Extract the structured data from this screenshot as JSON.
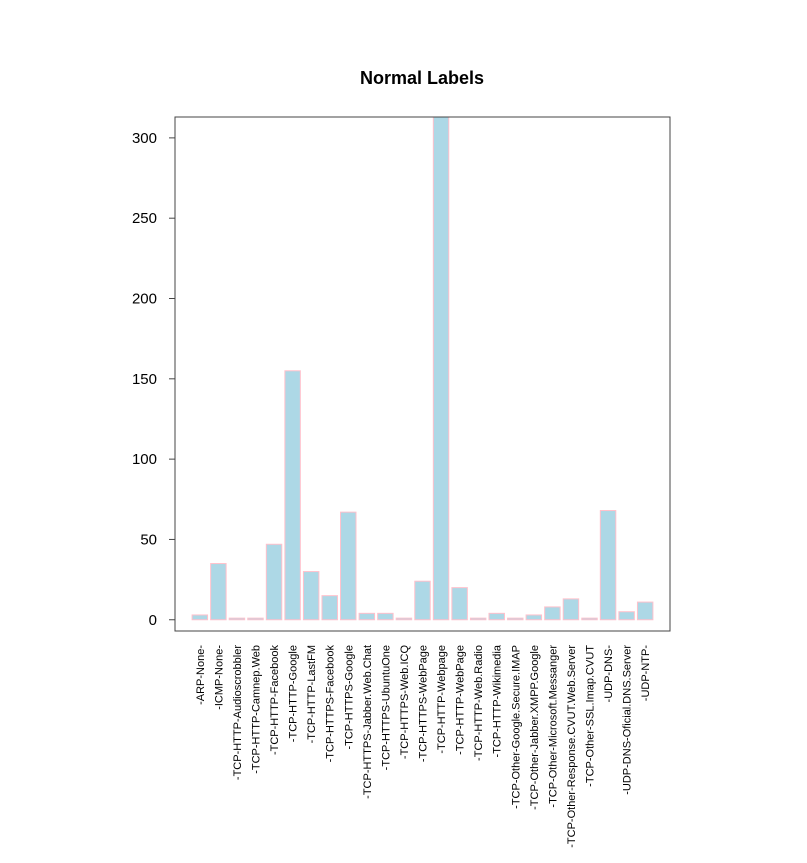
{
  "chart_data": {
    "type": "bar",
    "title": "Normal Labels",
    "xlabel": "",
    "ylabel": "",
    "categories": [
      "-ARP-None-",
      "-ICMP-None-",
      "-TCP-HTTP-Audioscrobbler",
      "-TCP-HTTP-Camnep.Web",
      "-TCP-HTTP-Facebook",
      "-TCP-HTTP-Google",
      "-TCP-HTTP-LastFM",
      "-TCP-HTTPS-Facebook",
      "-TCP-HTTPS-Google",
      "-TCP-HTTPS-Jabber.Web.Chat",
      "-TCP-HTTPS-UbuntuOne",
      "-TCP-HTTPS-Web.ICQ",
      "-TCP-HTTPS-WebPage",
      "-TCP-HTTP-Webpage",
      "-TCP-HTTP-WebPage",
      "-TCP-HTTP-Web.Radio",
      "-TCP-HTTP-Wikimedia",
      "-TCP-Other-Google.Secure.IMAP",
      "-TCP-Other-Jabber.XMPP.Google",
      "-TCP-Other-Microsoft.Messanger",
      "-TCP-Other-Response.CVUT.Web.Server",
      "-TCP-Other-SSL.Imap.CVUT",
      "-UDP-DNS-",
      "-UDP-DNS-Oficial.DNS.Server",
      "-UDP-NTP-"
    ],
    "values": [
      3,
      35,
      1,
      1,
      47,
      155,
      30,
      15,
      67,
      4,
      4,
      1,
      24,
      313,
      20,
      1,
      4,
      1,
      3,
      8,
      13,
      1,
      68,
      5,
      11
    ],
    "yticks": [
      0,
      50,
      100,
      150,
      200,
      250,
      300
    ],
    "ylim": [
      -7,
      313
    ],
    "grid": false,
    "legend": "none",
    "colors": {
      "bar_fill": "#add8e6",
      "bar_border": "#ffc0cb",
      "axis": "#000000"
    }
  }
}
